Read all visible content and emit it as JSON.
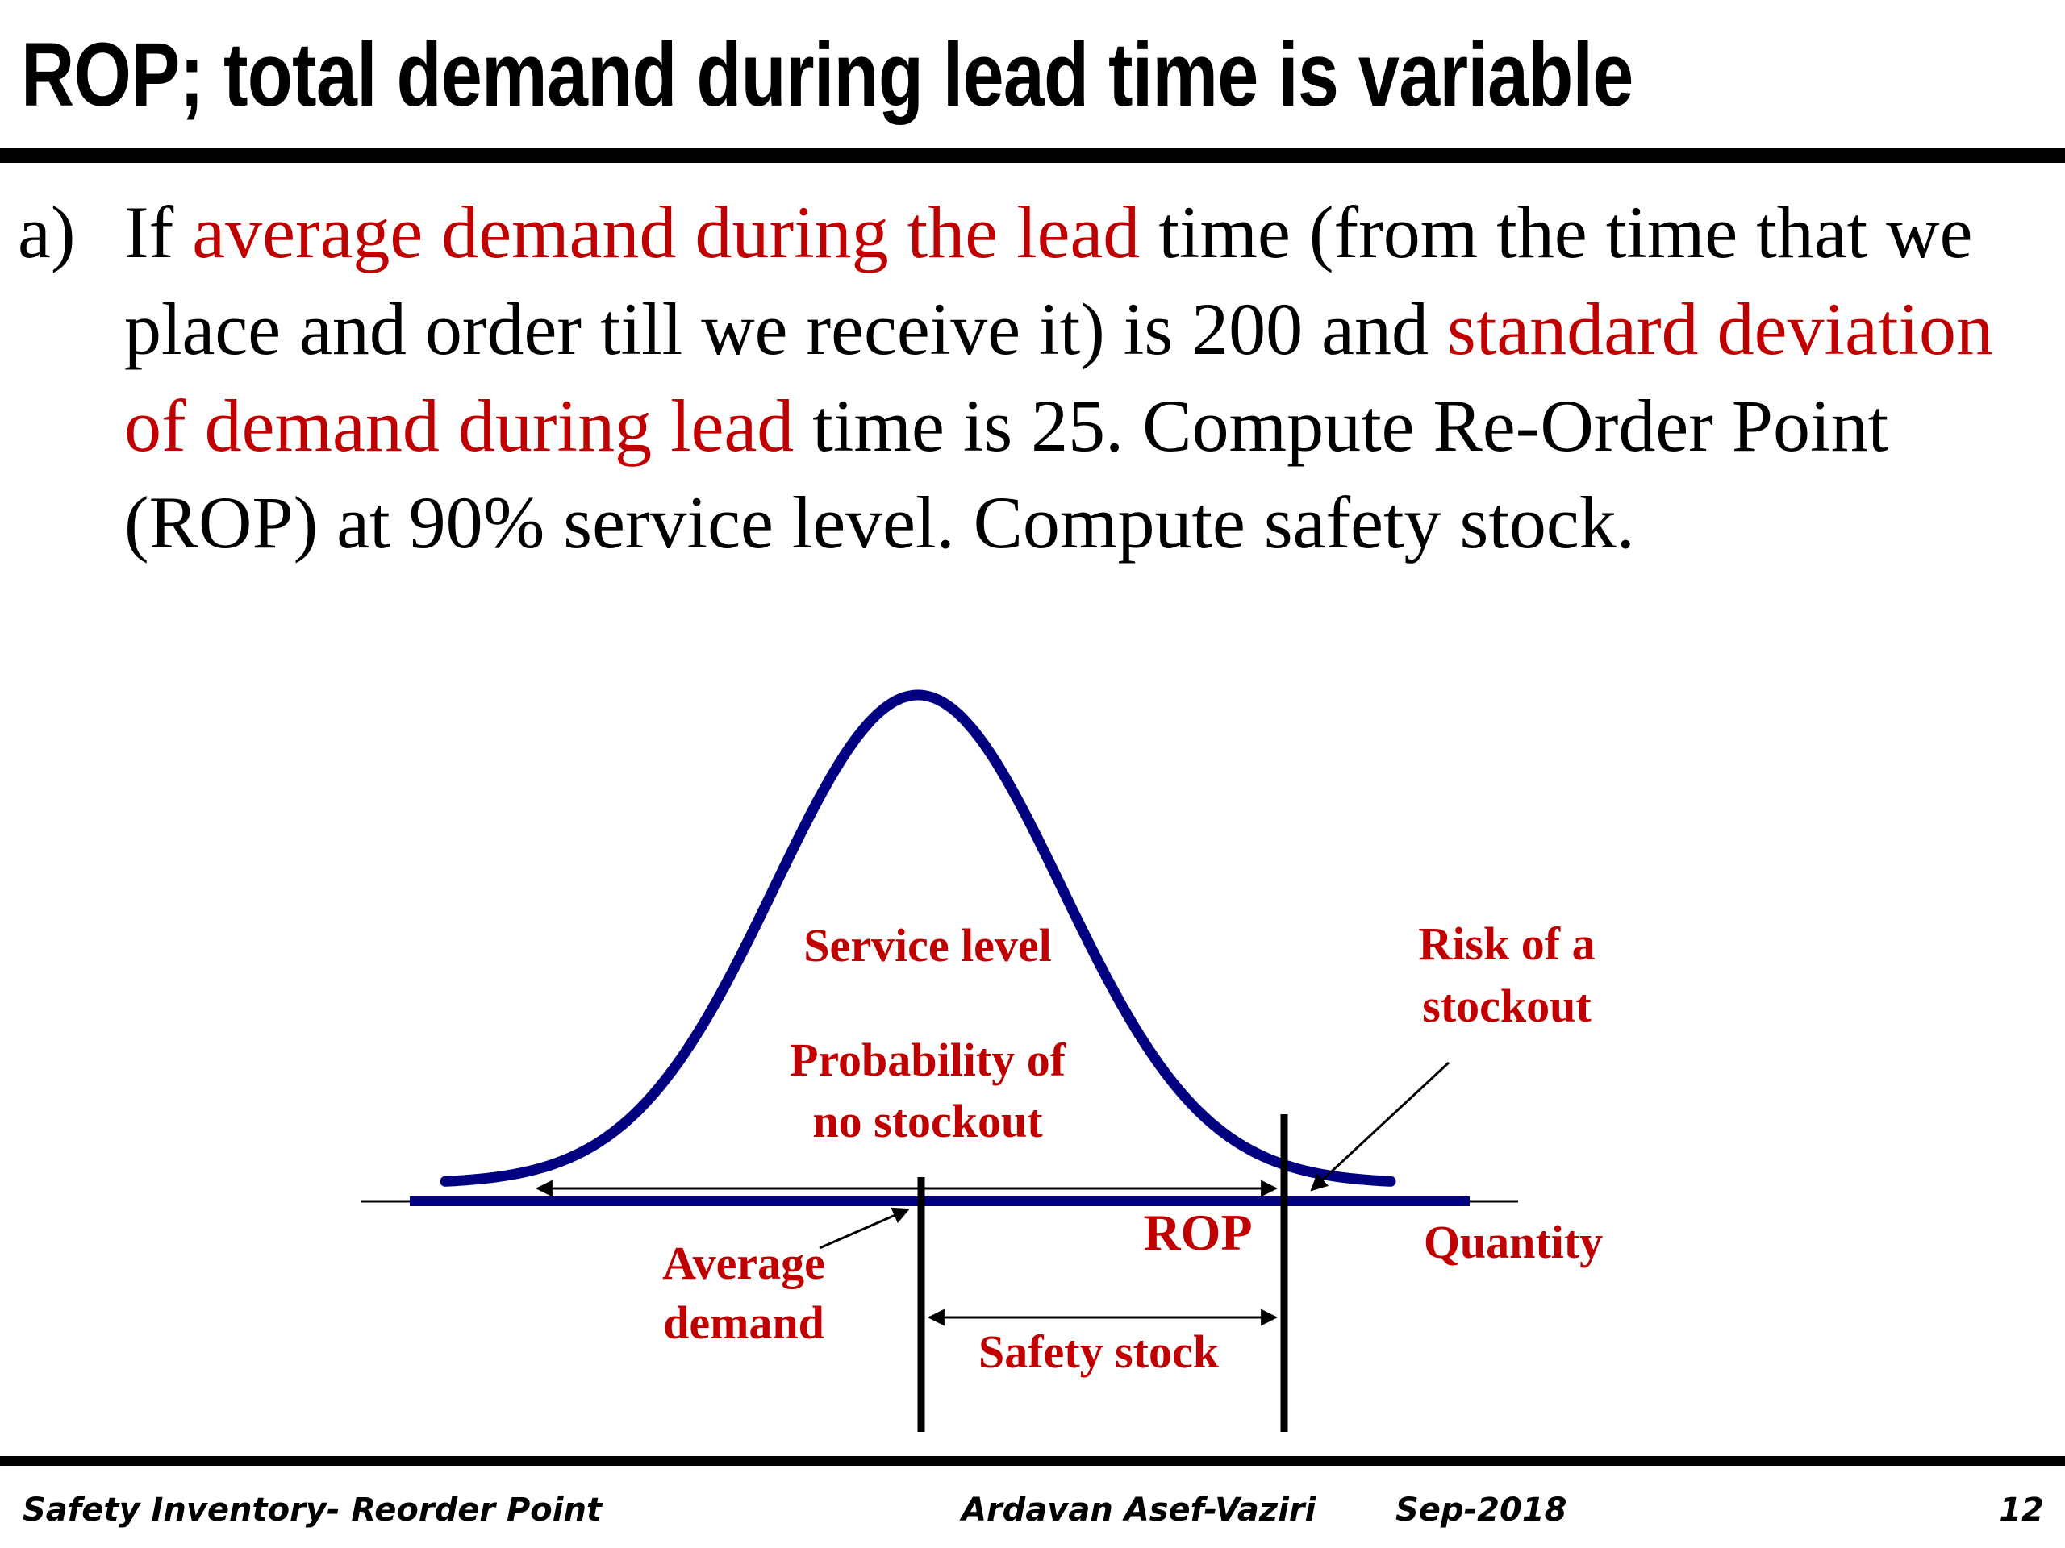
{
  "title": "ROP; total demand during lead time is variable",
  "question": {
    "marker": "a)",
    "t1": "If ",
    "t2": "average demand during the lead",
    "t3": " time (from the time that we place and order till we receive it) is 200 and ",
    "t4": "standard deviation of demand during lead",
    "t5": " time is 25.  Compute Re-Order Point (ROP) at 90% service level. Compute safety stock."
  },
  "diagram": {
    "service_level": "Service level",
    "prob_line1": "Probability of",
    "prob_line2": "no stockout",
    "risk_line1": "Risk of a",
    "risk_line2": "stockout",
    "rop": "ROP",
    "quantity": "Quantity",
    "avg_line1": "Average",
    "avg_line2": "demand",
    "safety_stock": "Safety stock",
    "colors": {
      "curve": "#000080",
      "label": "#c00000",
      "line": "#000000"
    }
  },
  "footer": {
    "left": "Safety Inventory- Reorder Point",
    "author": "Ardavan Asef-Vaziri",
    "date": "Sep-2018",
    "page": "12"
  }
}
